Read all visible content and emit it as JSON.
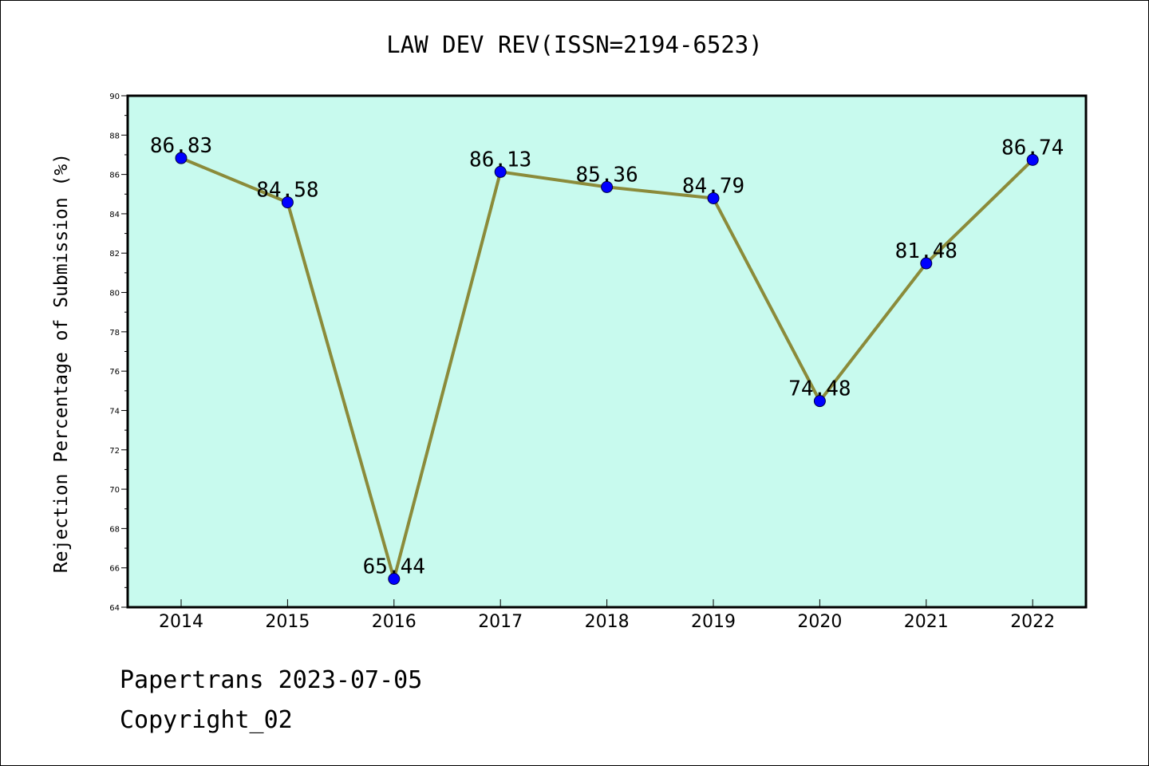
{
  "chart_data": {
    "type": "line",
    "title": "LAW DEV REV(ISSN=2194-6523)",
    "xlabel": "",
    "ylabel": "Rejection Percentage of Submission (%)",
    "categories": [
      "2014",
      "2015",
      "2016",
      "2017",
      "2018",
      "2019",
      "2020",
      "2021",
      "2022"
    ],
    "series": [
      {
        "values": [
          86.83,
          84.58,
          65.44,
          86.13,
          85.36,
          84.79,
          74.48,
          81.48,
          86.74
        ],
        "data_labels": [
          "86.83",
          "84.58",
          "65.44",
          "86.13",
          "85.36",
          "84.79",
          "74.48",
          "81.48",
          "86.74"
        ]
      }
    ],
    "ylim": [
      64,
      90
    ],
    "yticks": [
      "64",
      "66",
      "68",
      "70",
      "72",
      "74",
      "76",
      "78",
      "80",
      "82",
      "84",
      "86",
      "88",
      "90"
    ],
    "grid": false,
    "legend": "none",
    "colors": {
      "plot_background": "#c8faee",
      "line": "#8b8b3a",
      "marker": "#0000ff"
    }
  },
  "footer": {
    "source": "Papertrans 2023-07-05",
    "copyright": "Copyright_02"
  }
}
